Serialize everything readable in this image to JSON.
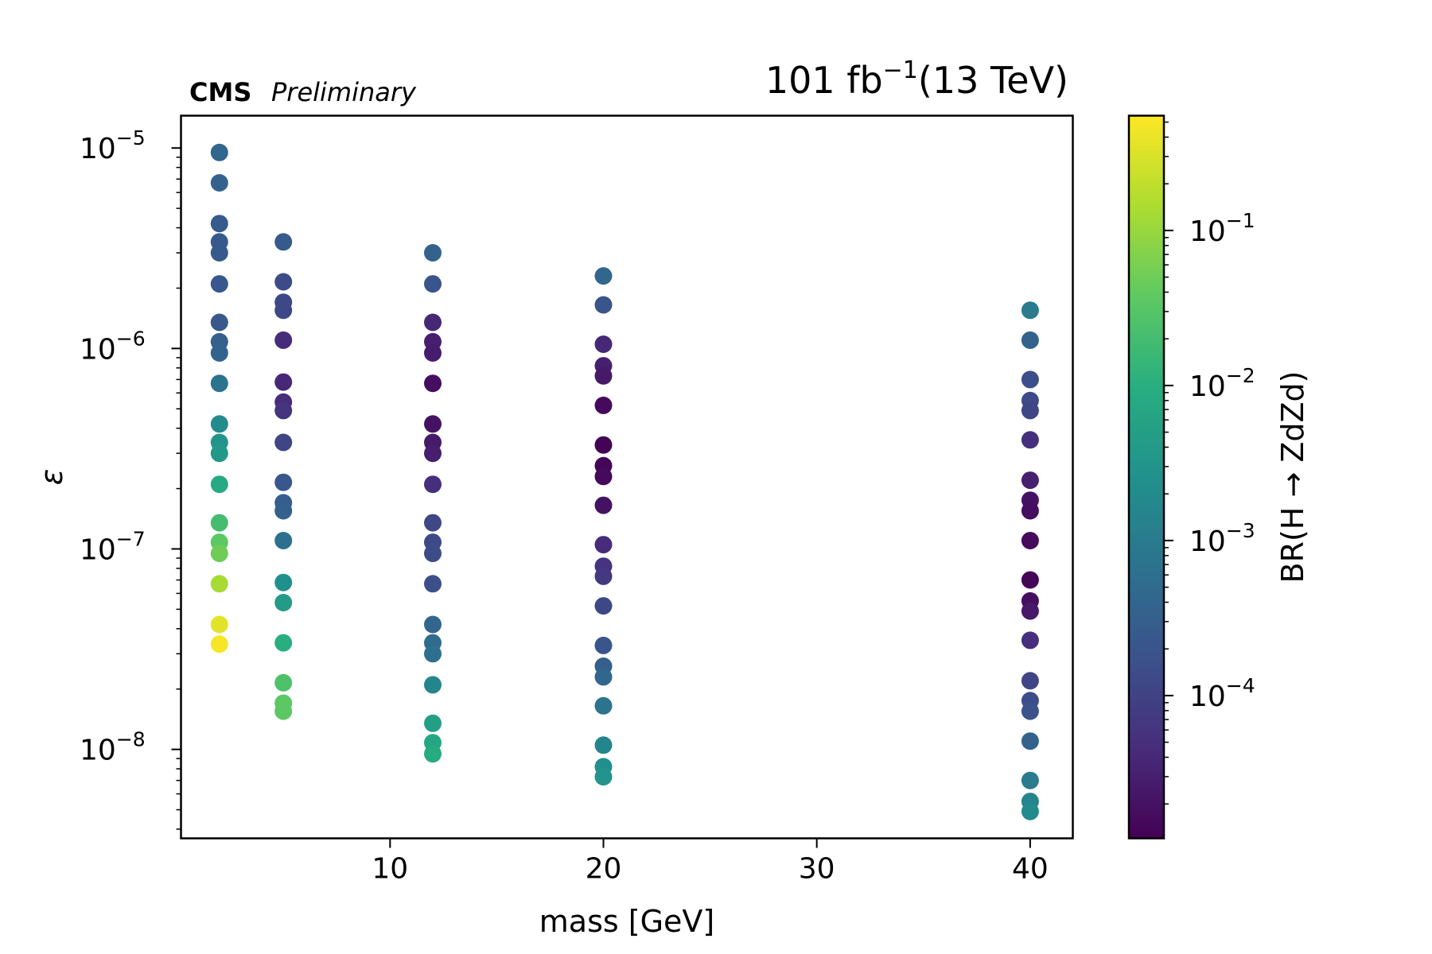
{
  "chart_data": {
    "type": "scatter",
    "header": {
      "experiment": "CMS",
      "status": "Preliminary",
      "lumi_value": "101 fb",
      "lumi_exponent": "−1",
      "energy": "(13 TeV)"
    },
    "xlabel": "mass [GeV]",
    "ylabel": "ε",
    "colorbar_label": "BR(H → ZdZd)",
    "xlim": [
      0.2,
      42
    ],
    "ylim": [
      3.6e-09,
      1.45e-05
    ],
    "y_scale": "log",
    "x_ticks": [
      10,
      20,
      30,
      40
    ],
    "y_ticks": [
      {
        "value": 1e-08,
        "base": "10",
        "exp": "−8"
      },
      {
        "value": 1e-07,
        "base": "10",
        "exp": "−7"
      },
      {
        "value": 1e-06,
        "base": "10",
        "exp": "−6"
      },
      {
        "value": 1e-05,
        "base": "10",
        "exp": "−5"
      }
    ],
    "colorbar": {
      "scale": "log",
      "colormap": "viridis",
      "range": [
        1.2e-05,
        0.55
      ],
      "ticks": [
        {
          "value": 0.0001,
          "base": "10",
          "exp": "−4"
        },
        {
          "value": 0.001,
          "base": "10",
          "exp": "−3"
        },
        {
          "value": 0.01,
          "base": "10",
          "exp": "−2"
        },
        {
          "value": 0.1,
          "base": "10",
          "exp": "−1"
        }
      ]
    },
    "series": [
      {
        "x": 2,
        "points": [
          {
            "eps": 9.5e-06,
            "br": 0.0004
          },
          {
            "eps": 6.7e-06,
            "br": 0.00035
          },
          {
            "eps": 4.2e-06,
            "br": 0.00026
          },
          {
            "eps": 3.4e-06,
            "br": 0.00024
          },
          {
            "eps": 3e-06,
            "br": 0.00025
          },
          {
            "eps": 2.1e-06,
            "br": 0.00022
          },
          {
            "eps": 1.35e-06,
            "br": 0.00024
          },
          {
            "eps": 1.08e-06,
            "br": 0.0003
          },
          {
            "eps": 9.5e-07,
            "br": 0.00035
          },
          {
            "eps": 6.7e-07,
            "br": 0.0007
          },
          {
            "eps": 4.2e-07,
            "br": 0.002
          },
          {
            "eps": 3.4e-07,
            "br": 0.003
          },
          {
            "eps": 3e-07,
            "br": 0.0035
          },
          {
            "eps": 2.1e-07,
            "br": 0.008
          },
          {
            "eps": 1.35e-07,
            "br": 0.02
          },
          {
            "eps": 1.08e-07,
            "br": 0.035
          },
          {
            "eps": 9.5e-08,
            "br": 0.05
          },
          {
            "eps": 6.7e-08,
            "br": 0.13
          },
          {
            "eps": 4.2e-08,
            "br": 0.35
          },
          {
            "eps": 3.35e-08,
            "br": 0.5
          }
        ]
      },
      {
        "x": 5,
        "points": [
          {
            "eps": 3.4e-06,
            "br": 0.00025
          },
          {
            "eps": 2.15e-06,
            "br": 0.00014
          },
          {
            "eps": 1.7e-06,
            "br": 0.00012
          },
          {
            "eps": 1.55e-06,
            "br": 0.00012
          },
          {
            "eps": 1.1e-06,
            "br": 4.5e-05
          },
          {
            "eps": 6.8e-07,
            "br": 4e-05
          },
          {
            "eps": 5.4e-07,
            "br": 4.5e-05
          },
          {
            "eps": 4.9e-07,
            "br": 6e-05
          },
          {
            "eps": 3.4e-07,
            "br": 0.00011
          },
          {
            "eps": 2.15e-07,
            "br": 0.00022
          },
          {
            "eps": 1.7e-07,
            "br": 0.00028
          },
          {
            "eps": 1.55e-07,
            "br": 0.00032
          },
          {
            "eps": 1.1e-07,
            "br": 0.0006
          },
          {
            "eps": 6.8e-08,
            "br": 0.0025
          },
          {
            "eps": 5.4e-08,
            "br": 0.004
          },
          {
            "eps": 3.4e-08,
            "br": 0.01
          },
          {
            "eps": 2.15e-08,
            "br": 0.025
          },
          {
            "eps": 1.7e-08,
            "br": 0.035
          },
          {
            "eps": 1.55e-08,
            "br": 0.035
          }
        ]
      },
      {
        "x": 12,
        "points": [
          {
            "eps": 3e-06,
            "br": 0.00035
          },
          {
            "eps": 2.1e-06,
            "br": 0.0002
          },
          {
            "eps": 1.35e-06,
            "br": 4e-05
          },
          {
            "eps": 1.08e-06,
            "br": 3e-05
          },
          {
            "eps": 9.5e-07,
            "br": 2.8e-05
          },
          {
            "eps": 6.7e-07,
            "br": 1.8e-05
          },
          {
            "eps": 4.2e-07,
            "br": 2e-05
          },
          {
            "eps": 3.4e-07,
            "br": 2.5e-05
          },
          {
            "eps": 3e-07,
            "br": 3e-05
          },
          {
            "eps": 2.1e-07,
            "br": 5e-05
          },
          {
            "eps": 1.35e-07,
            "br": 0.00012
          },
          {
            "eps": 1.08e-07,
            "br": 0.00013
          },
          {
            "eps": 9.5e-08,
            "br": 0.00014
          },
          {
            "eps": 6.7e-08,
            "br": 0.00016
          },
          {
            "eps": 4.2e-08,
            "br": 0.0004
          },
          {
            "eps": 3.4e-08,
            "br": 0.0005
          },
          {
            "eps": 3e-08,
            "br": 0.0006
          },
          {
            "eps": 2.1e-08,
            "br": 0.0015
          },
          {
            "eps": 1.35e-08,
            "br": 0.005
          },
          {
            "eps": 1.08e-08,
            "br": 0.007
          },
          {
            "eps": 9.5e-09,
            "br": 0.0085
          }
        ]
      },
      {
        "x": 20,
        "points": [
          {
            "eps": 2.3e-06,
            "br": 0.0004
          },
          {
            "eps": 1.65e-06,
            "br": 0.0002
          },
          {
            "eps": 1.05e-06,
            "br": 4e-05
          },
          {
            "eps": 8.2e-07,
            "br": 3e-05
          },
          {
            "eps": 7.3e-07,
            "br": 2.5e-05
          },
          {
            "eps": 5.2e-07,
            "br": 1.6e-05
          },
          {
            "eps": 3.3e-07,
            "br": 1.3e-05
          },
          {
            "eps": 2.6e-07,
            "br": 1.4e-05
          },
          {
            "eps": 2.3e-07,
            "br": 1.6e-05
          },
          {
            "eps": 1.65e-07,
            "br": 2e-05
          },
          {
            "eps": 1.05e-07,
            "br": 4.5e-05
          },
          {
            "eps": 8.2e-08,
            "br": 6e-05
          },
          {
            "eps": 7.3e-08,
            "br": 7e-05
          },
          {
            "eps": 5.2e-08,
            "br": 0.00012
          },
          {
            "eps": 3.3e-08,
            "br": 0.0002
          },
          {
            "eps": 2.6e-08,
            "br": 0.0003
          },
          {
            "eps": 2.3e-08,
            "br": 0.0004
          },
          {
            "eps": 1.65e-08,
            "br": 0.0007
          },
          {
            "eps": 1.05e-08,
            "br": 0.0015
          },
          {
            "eps": 8.2e-09,
            "br": 0.0025
          },
          {
            "eps": 7.3e-09,
            "br": 0.003
          }
        ]
      },
      {
        "x": 40,
        "points": [
          {
            "eps": 1.55e-06,
            "br": 0.001
          },
          {
            "eps": 1.1e-06,
            "br": 0.00035
          },
          {
            "eps": 7e-07,
            "br": 0.00016
          },
          {
            "eps": 5.5e-07,
            "br": 0.00013
          },
          {
            "eps": 4.9e-07,
            "br": 0.00011
          },
          {
            "eps": 3.5e-07,
            "br": 5e-05
          },
          {
            "eps": 2.2e-07,
            "br": 3e-05
          },
          {
            "eps": 1.75e-07,
            "br": 2e-05
          },
          {
            "eps": 1.55e-07,
            "br": 1.8e-05
          },
          {
            "eps": 1.1e-07,
            "br": 1.6e-05
          },
          {
            "eps": 7e-08,
            "br": 1.4e-05
          },
          {
            "eps": 5.5e-08,
            "br": 1.8e-05
          },
          {
            "eps": 4.9e-08,
            "br": 2.5e-05
          },
          {
            "eps": 3.5e-08,
            "br": 5e-05
          },
          {
            "eps": 2.2e-08,
            "br": 0.00011
          },
          {
            "eps": 1.75e-08,
            "br": 0.00015
          },
          {
            "eps": 1.55e-08,
            "br": 0.00018
          },
          {
            "eps": 1.1e-08,
            "br": 0.00035
          },
          {
            "eps": 7e-09,
            "br": 0.001
          },
          {
            "eps": 5.5e-09,
            "br": 0.0015
          },
          {
            "eps": 4.9e-09,
            "br": 0.002
          }
        ]
      }
    ]
  }
}
